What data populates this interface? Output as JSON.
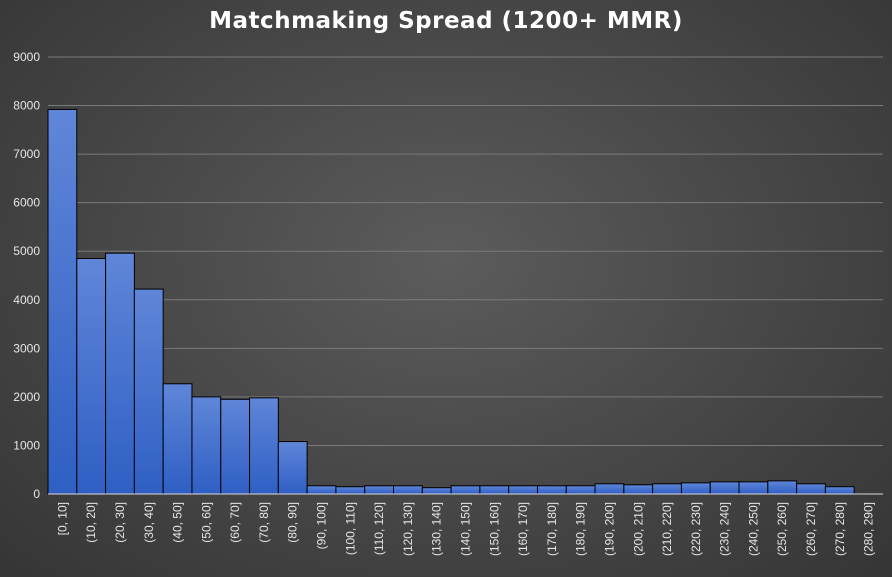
{
  "chart_data": {
    "type": "bar",
    "title": "Matchmaking Spread (1200+ MMR)",
    "xlabel": "",
    "ylabel": "",
    "ylim": [
      0,
      9000
    ],
    "yticks": [
      0,
      1000,
      2000,
      3000,
      4000,
      5000,
      6000,
      7000,
      8000,
      9000
    ],
    "grid": true,
    "legend": "none",
    "bar_color": "#3f6bcc",
    "categories": [
      "[0, 10]",
      "(10, 20]",
      "(20, 30]",
      "(30, 40]",
      "(40, 50]",
      "(50, 60]",
      "(60, 70]",
      "(70, 80]",
      "(80, 90]",
      "(90, 100]",
      "(100, 110]",
      "(110, 120]",
      "(120, 130]",
      "(130, 140]",
      "(140, 150]",
      "(150, 160]",
      "(160, 170]",
      "(170, 180]",
      "(180, 190]",
      "(190, 200]",
      "(200, 210]",
      "(210, 220]",
      "(220, 230]",
      "(230, 240]",
      "(240, 250]",
      "(250, 260]",
      "(260, 270]",
      "(270, 280]",
      "(280, 290]"
    ],
    "values": [
      7920,
      4850,
      4960,
      4220,
      2270,
      2000,
      1950,
      1980,
      1080,
      170,
      150,
      170,
      170,
      130,
      170,
      170,
      170,
      170,
      170,
      210,
      190,
      210,
      230,
      250,
      250,
      270,
      210,
      150,
      0
    ]
  }
}
